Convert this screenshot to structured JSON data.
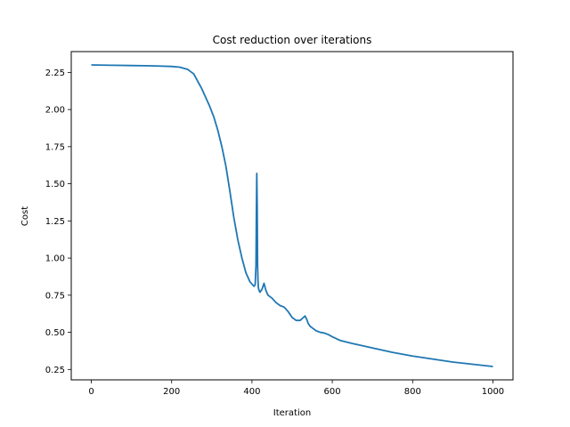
{
  "chart_data": {
    "type": "line",
    "title": "Cost reduction over iterations",
    "xlabel": "Iteration",
    "ylabel": "Cost",
    "xlim": [
      -50,
      1050
    ],
    "ylim": [
      0.18,
      2.39
    ],
    "xticks": [
      0,
      200,
      400,
      600,
      800,
      1000
    ],
    "yticks": [
      0.25,
      0.5,
      0.75,
      1.0,
      1.25,
      1.5,
      1.75,
      2.0,
      2.25
    ],
    "ytick_labels": [
      "0.25",
      "0.50",
      "0.75",
      "1.00",
      "1.25",
      "1.50",
      "1.75",
      "2.00",
      "2.25"
    ],
    "grid": false,
    "line_color": "#1f77b4",
    "series": [
      {
        "x": [
          0,
          50,
          100,
          150,
          200,
          220,
          240,
          255,
          265,
          275,
          285,
          295,
          305,
          315,
          325,
          335,
          345,
          355,
          365,
          375,
          385,
          395,
          405,
          408,
          410,
          411,
          412,
          413,
          414,
          415,
          416,
          418,
          420,
          425,
          430,
          435,
          440,
          450,
          460,
          470,
          480,
          490,
          500,
          510,
          520,
          528,
          532,
          536,
          540,
          545,
          550,
          560,
          570,
          580,
          590,
          600,
          620,
          650,
          700,
          750,
          800,
          850,
          900,
          950,
          1000
        ],
        "y": [
          2.3,
          2.298,
          2.296,
          2.294,
          2.29,
          2.285,
          2.27,
          2.24,
          2.19,
          2.14,
          2.08,
          2.02,
          1.95,
          1.86,
          1.75,
          1.62,
          1.45,
          1.27,
          1.12,
          1.0,
          0.9,
          0.84,
          0.81,
          0.82,
          0.95,
          1.3,
          1.57,
          1.35,
          0.95,
          0.85,
          0.8,
          0.78,
          0.77,
          0.79,
          0.83,
          0.78,
          0.75,
          0.73,
          0.7,
          0.68,
          0.67,
          0.64,
          0.6,
          0.58,
          0.58,
          0.6,
          0.61,
          0.59,
          0.56,
          0.54,
          0.53,
          0.51,
          0.5,
          0.495,
          0.485,
          0.47,
          0.445,
          0.425,
          0.395,
          0.365,
          0.34,
          0.32,
          0.3,
          0.285,
          0.27
        ]
      }
    ]
  }
}
